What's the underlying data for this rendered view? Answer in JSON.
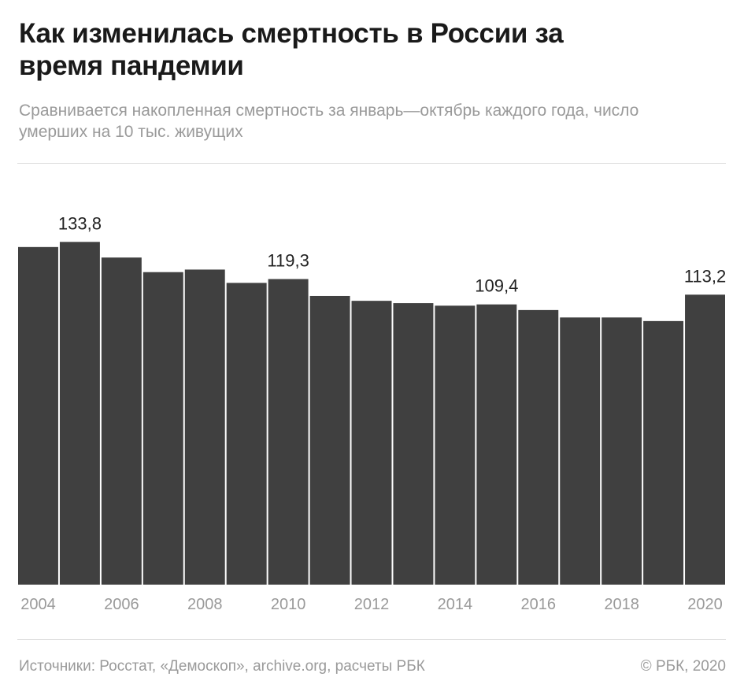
{
  "title": "Как изменилась смертность в России за время пандемии",
  "subtitle": "Сравнивается накопленная смертность за январь—октябрь каждого года, число умерших на 10 тыс. живущих",
  "footer": {
    "sources": "Источники: Росстат, «Демоскоп», archive.org, расчеты РБК",
    "copyright": "© РБК, 2020"
  },
  "chart_data": {
    "type": "bar",
    "categories": [
      2004,
      2005,
      2006,
      2007,
      2008,
      2009,
      2010,
      2011,
      2012,
      2013,
      2014,
      2015,
      2016,
      2017,
      2018,
      2019,
      2020
    ],
    "values": [
      131.8,
      133.8,
      127.7,
      122.0,
      123.0,
      117.8,
      119.3,
      112.7,
      110.8,
      109.9,
      108.9,
      109.4,
      107.2,
      104.3,
      104.3,
      102.9,
      113.2
    ],
    "data_labels": {
      "2005": "133,8",
      "2010": "119,3",
      "2015": "109,4",
      "2020": "113,2"
    },
    "tick_labels": [
      "2004",
      "2006",
      "2008",
      "2010",
      "2012",
      "2014",
      "2016",
      "2018",
      "2020"
    ],
    "ylim": [
      0,
      133.8
    ],
    "grid": false,
    "bar_color": "#404040"
  }
}
